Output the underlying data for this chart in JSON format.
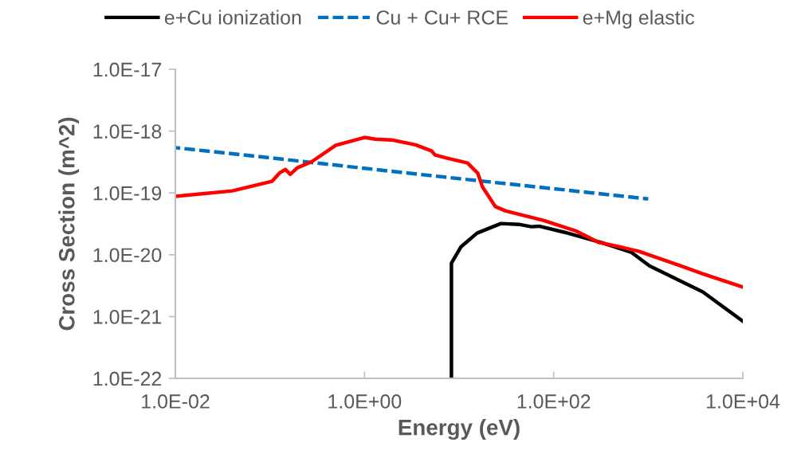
{
  "chart_data": {
    "type": "line",
    "xlabel": "Energy (eV)",
    "ylabel": "Cross Section (m^2)",
    "log": "xy",
    "grid": false,
    "legend": "top",
    "marker": "none",
    "xlim": [
      0.01,
      10000
    ],
    "ylim": [
      1e-22,
      1e-17
    ],
    "xticks": [
      {
        "value": 0.01,
        "label": "1.0E-02"
      },
      {
        "value": 1,
        "label": "1.0E+00"
      },
      {
        "value": 100,
        "label": "1.0E+02"
      },
      {
        "value": 10000,
        "label": "1.0E+04"
      }
    ],
    "yticks": [
      {
        "value": 1e-22,
        "label": "1.0E-22"
      },
      {
        "value": 1e-21,
        "label": "1.0E-21"
      },
      {
        "value": 1e-20,
        "label": "1.0E-20"
      },
      {
        "value": 1e-19,
        "label": "1.0E-19"
      },
      {
        "value": 1e-18,
        "label": "1.0E-18"
      },
      {
        "value": 1e-17,
        "label": "1.0E-17"
      }
    ],
    "series": [
      {
        "name": "e+Cu ionization",
        "color": "#000000",
        "line_style": "solid",
        "x": [
          8.3,
          8.3,
          10.5,
          15.5,
          27.7,
          43,
          58,
          70,
          131,
          321,
          658,
          1030,
          3780,
          10000
        ],
        "values": [
          1e-22,
          7.3e-21,
          1.35e-20,
          2.24e-20,
          3.2e-20,
          3.1e-20,
          2.84e-20,
          2.9e-20,
          2.3e-20,
          1.57e-20,
          1.1e-20,
          6.6e-21,
          2.5e-21,
          8.4e-22
        ]
      },
      {
        "name": "Cu + Cu+ RCE",
        "color": "#0070c0",
        "line_style": "dashed",
        "x": [
          0.01,
          0.1,
          1,
          10,
          100,
          1000
        ],
        "values": [
          5.4e-19,
          3.7e-19,
          2.5e-19,
          1.7e-19,
          1.17e-19,
          8e-20
        ]
      },
      {
        "name": "e+Mg elastic",
        "color": "#ff0000",
        "line_style": "solid",
        "x": [
          0.01,
          0.04,
          0.105,
          0.128,
          0.146,
          0.164,
          0.195,
          0.277,
          0.497,
          1,
          1.31,
          1.94,
          3.47,
          5.1,
          5.6,
          7.5,
          12.3,
          15.8,
          17.7,
          24.2,
          31.2,
          77.6,
          169,
          302,
          490,
          800,
          2100,
          3800,
          10000
        ],
        "values": [
          8.8e-20,
          1.08e-19,
          1.54e-19,
          2.14e-19,
          2.4e-19,
          2e-19,
          2.55e-19,
          3.2e-19,
          5.9e-19,
          7.9e-19,
          7.4e-19,
          7.2e-19,
          6e-19,
          4.8e-19,
          4.1e-19,
          3.65e-19,
          3.05e-19,
          2.07e-19,
          1.25e-19,
          6e-20,
          5.1e-20,
          3.6e-20,
          2.45e-20,
          1.58e-20,
          1.35e-20,
          1.13e-20,
          6.8e-21,
          4.9e-21,
          3e-21
        ]
      }
    ]
  }
}
